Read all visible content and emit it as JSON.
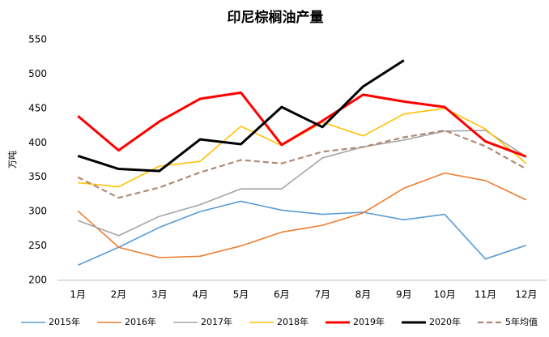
{
  "chart_data": {
    "type": "line",
    "title": "印尼棕榈油产量",
    "y_label": "万吨",
    "categories": [
      "1月",
      "2月",
      "3月",
      "4月",
      "5月",
      "6月",
      "7月",
      "8月",
      "9月",
      "10月",
      "11月",
      "12月"
    ],
    "ylim": [
      200,
      550
    ],
    "yticks": [
      200,
      250,
      300,
      350,
      400,
      450,
      500,
      550
    ],
    "grid": false,
    "legend": "bottom",
    "series": [
      {
        "name": "2015年",
        "color": "#5b9bd5",
        "values": [
          222,
          248,
          277,
          300,
          315,
          302,
          296,
          299,
          288,
          296,
          231,
          251
        ]
      },
      {
        "name": "2016年",
        "color": "#ed7d31",
        "values": [
          301,
          248,
          233,
          235,
          250,
          270,
          280,
          298,
          334,
          356,
          345,
          317
        ]
      },
      {
        "name": "2017年",
        "color": "#a5a5a5",
        "values": [
          287,
          265,
          293,
          310,
          333,
          333,
          378,
          394,
          404,
          417,
          418,
          380
        ]
      },
      {
        "name": "2018年",
        "color": "#ffc000",
        "values": [
          342,
          336,
          366,
          373,
          424,
          396,
          430,
          410,
          442,
          450,
          420,
          370
        ]
      },
      {
        "name": "2019年",
        "color": "#ff0000",
        "width": 3,
        "values": [
          439,
          389,
          431,
          464,
          473,
          397,
          432,
          470,
          460,
          452,
          402,
          380
        ]
      },
      {
        "name": "2020年",
        "color": "#000000",
        "width": 3,
        "values": [
          381,
          362,
          359,
          405,
          398,
          452,
          423,
          482,
          520,
          null,
          null,
          null
        ]
      },
      {
        "name": "5年均值",
        "color": "#b08a78",
        "dashed": true,
        "values": [
          350,
          320,
          335,
          357,
          375,
          370,
          387,
          394,
          408,
          418,
          395,
          362
        ]
      }
    ]
  }
}
